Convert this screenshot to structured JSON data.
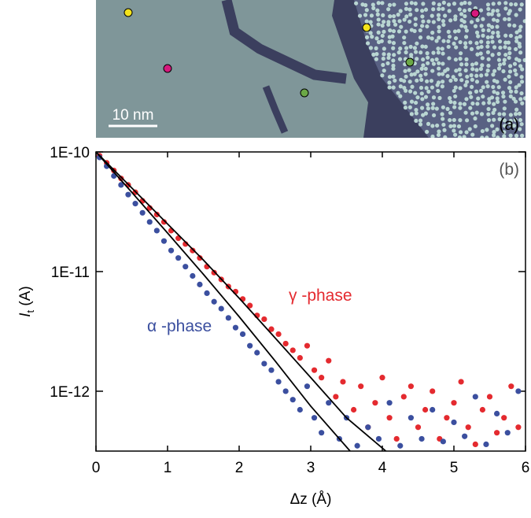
{
  "image_panel": {
    "label": "(a)",
    "scale_bar": "10 nm"
  },
  "chart_data": {
    "type": "scatter",
    "panel_label": "(b)",
    "xlabel": "Δz (Å)",
    "ylabel": [
      "I",
      "t",
      " (A)"
    ],
    "annotations": [
      {
        "text": "γ -phase",
        "color": "#e42a2f"
      },
      {
        "text": "α -phase",
        "color": "#3b4f9f"
      }
    ],
    "log_y": true,
    "xlim": [
      0,
      6
    ],
    "ylim": [
      3.16e-13,
      1e-10
    ],
    "xticks": [
      0,
      1,
      2,
      3,
      4,
      5,
      6
    ],
    "yticks": [
      {
        "value": 1e-10,
        "label": "1E-10"
      },
      {
        "value": 1e-11,
        "label": "1E-11"
      },
      {
        "value": 1e-12,
        "label": "1E-12"
      }
    ],
    "series": [
      {
        "color": "#e42a2f",
        "x": [
          0.05,
          0.15,
          0.25,
          0.35,
          0.45,
          0.55,
          0.65,
          0.75,
          0.85,
          0.95,
          1.05,
          1.15,
          1.25,
          1.35,
          1.45,
          1.55,
          1.65,
          1.75,
          1.85,
          1.95,
          2.05,
          2.15,
          2.25,
          2.35,
          2.45,
          2.55,
          2.65,
          2.75,
          2.85,
          2.95,
          3.05,
          3.15,
          3.25,
          3.35,
          3.45,
          3.6,
          3.7,
          3.8,
          3.9,
          4.0,
          4.1,
          4.2,
          4.3,
          4.4,
          4.5,
          4.6,
          4.7,
          4.8,
          4.9,
          5.0,
          5.1,
          5.2,
          5.3,
          5.4,
          5.5,
          5.6,
          5.7,
          5.8,
          5.9
        ],
        "values": [
          9.3e-11,
          8.1e-11,
          7e-11,
          6e-11,
          5.3e-11,
          4.6e-11,
          3.9e-11,
          3.4e-11,
          3e-11,
          2.6e-11,
          2.2e-11,
          1.9e-11,
          1.7e-11,
          1.5e-11,
          1.3e-11,
          1.1e-11,
          9.8e-12,
          8.6e-12,
          7.5e-12,
          6.8e-12,
          5.9e-12,
          5.2e-12,
          4.3e-12,
          4e-12,
          3.3e-12,
          3e-12,
          2.5e-12,
          2.2e-12,
          1.9e-12,
          2.4e-12,
          1.5e-12,
          1.3e-12,
          1.8e-12,
          9e-13,
          1.2e-12,
          7e-13,
          1.1e-12,
          5e-13,
          8e-13,
          1.3e-12,
          6e-13,
          4e-13,
          9e-13,
          1.1e-12,
          5e-13,
          7e-13,
          1e-12,
          4e-13,
          6e-13,
          8e-13,
          1.2e-12,
          5e-13,
          3.6e-13,
          7e-13,
          9e-13,
          4.5e-13,
          6e-13,
          1.1e-12,
          5e-13
        ]
      },
      {
        "color": "#3b4f9f",
        "x": [
          0.05,
          0.15,
          0.25,
          0.35,
          0.45,
          0.55,
          0.65,
          0.75,
          0.85,
          0.95,
          1.05,
          1.15,
          1.25,
          1.35,
          1.45,
          1.55,
          1.65,
          1.75,
          1.85,
          1.95,
          2.05,
          2.15,
          2.25,
          2.35,
          2.45,
          2.55,
          2.65,
          2.75,
          2.85,
          2.95,
          3.05,
          3.15,
          3.25,
          3.4,
          3.5,
          3.65,
          3.8,
          3.95,
          4.1,
          4.25,
          4.4,
          4.55,
          4.7,
          4.85,
          5.0,
          5.15,
          5.3,
          5.45,
          5.6,
          5.75,
          5.9
        ],
        "values": [
          9e-11,
          7.6e-11,
          6.3e-11,
          5.3e-11,
          4.4e-11,
          3.7e-11,
          3.1e-11,
          2.6e-11,
          2.2e-11,
          1.8e-11,
          1.5e-11,
          1.3e-11,
          1.1e-11,
          9.2e-12,
          7.8e-12,
          6.6e-12,
          5.6e-12,
          4.9e-12,
          4.1e-12,
          3.4e-12,
          3e-12,
          2.4e-12,
          2.1e-12,
          1.7e-12,
          1.5e-12,
          1.2e-12,
          1e-12,
          8.5e-13,
          7e-13,
          1.1e-12,
          6e-13,
          4.5e-13,
          8e-13,
          4e-13,
          6e-13,
          3.5e-13,
          5e-13,
          4e-13,
          8e-13,
          3.5e-13,
          6e-13,
          4e-13,
          7e-13,
          3.8e-13,
          5.5e-13,
          4.2e-13,
          9e-13,
          3.6e-13,
          6.5e-13,
          4.5e-13,
          1e-12
        ]
      }
    ],
    "fits": [
      {
        "color": "#000000",
        "x": [
          0,
          0.5,
          1,
          1.5,
          2,
          2.5,
          3,
          3.55
        ],
        "values": [
          1e-10,
          4.6e-11,
          2.1e-11,
          9.5e-12,
          4.2e-12,
          1.8e-12,
          7.5e-13,
          3.16e-13
        ]
      },
      {
        "color": "#000000",
        "x": [
          0,
          0.5,
          1,
          1.5,
          2,
          2.5,
          3,
          3.5,
          4.05
        ],
        "values": [
          1e-10,
          5e-11,
          2.5e-11,
          1.25e-11,
          6e-12,
          2.8e-12,
          1.3e-12,
          6e-13,
          3.16e-13
        ]
      }
    ]
  }
}
